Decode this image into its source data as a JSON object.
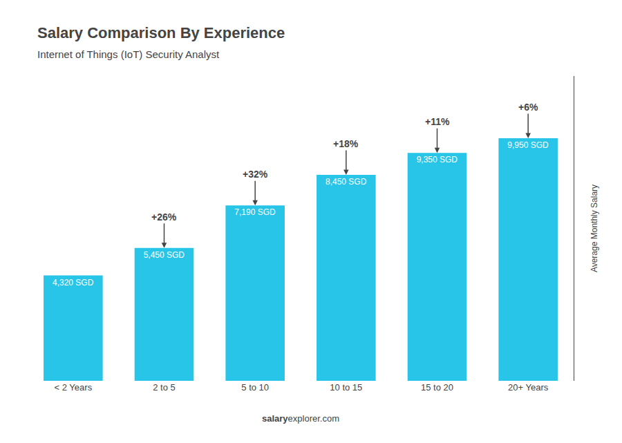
{
  "chart_data": {
    "type": "bar",
    "title": "Salary Comparison By Experience",
    "subtitle": "Internet of Things (IoT) Security Analyst",
    "ylabel": "Average Monthly Salary",
    "categories": [
      "< 2 Years",
      "2 to 5",
      "5 to 10",
      "10 to 15",
      "15 to 20",
      "20+ Years"
    ],
    "values": [
      4320,
      5450,
      7190,
      8450,
      9350,
      9950
    ],
    "value_labels": [
      "4,320 SGD",
      "5,450 SGD",
      "7,190 SGD",
      "8,450 SGD",
      "9,350 SGD",
      "9,950 SGD"
    ],
    "data_labels": true,
    "color": "#29c5e8",
    "ylim": [
      0,
      12500
    ],
    "tick_labels": "x",
    "grid": false,
    "annotations": [
      {
        "category": "2 to 5",
        "text": "+26%"
      },
      {
        "category": "5 to 10",
        "text": "+32%"
      },
      {
        "category": "10 to 15",
        "text": "+18%"
      },
      {
        "category": "15 to 20",
        "text": "+11%"
      },
      {
        "category": "20+ Years",
        "text": "+6%"
      }
    ],
    "footer": [
      "salary",
      "explorer.com"
    ]
  }
}
